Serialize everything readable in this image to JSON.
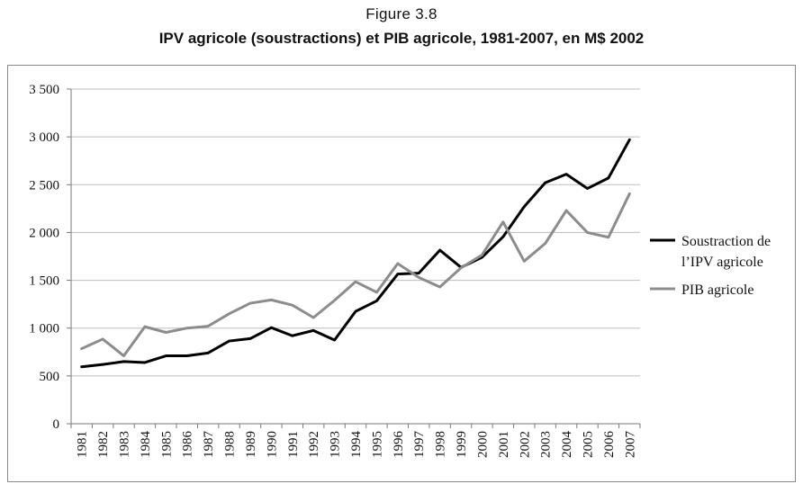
{
  "header": {
    "figure_label": "Figure 3.8",
    "title": "IPV agricole (soustractions) et PIB agricole, 1981-2007, en M$ 2002"
  },
  "chart_data": {
    "type": "line",
    "title": "IPV agricole (soustractions) et PIB agricole, 1981-2007, en M$ 2002",
    "xlabel": "",
    "ylabel": "",
    "ylim": [
      0,
      3500
    ],
    "yticks": [
      0,
      500,
      1000,
      1500,
      2000,
      2500,
      3000,
      3500
    ],
    "ytick_labels": [
      "0",
      "500",
      "1 000",
      "1 500",
      "2 000",
      "2 500",
      "3 000",
      "3 500"
    ],
    "grid": "horizontal",
    "legend_position": "right",
    "categories": [
      "1981",
      "1982",
      "1983",
      "1984",
      "1985",
      "1986",
      "1987",
      "1988",
      "1989",
      "1990",
      "1991",
      "1992",
      "1993",
      "1994",
      "1995",
      "1996",
      "1997",
      "1998",
      "1999",
      "2000",
      "2001",
      "2002",
      "2003",
      "2004",
      "2005",
      "2006",
      "2007"
    ],
    "series": [
      {
        "name": "Soustraction de l’IPV agricole",
        "legend_lines": [
          "Soustraction de",
          "l’IPV agricole"
        ],
        "color": "#000000",
        "values": [
          595,
          620,
          650,
          640,
          710,
          710,
          740,
          865,
          890,
          1005,
          920,
          975,
          875,
          1175,
          1285,
          1565,
          1575,
          1815,
          1635,
          1740,
          1955,
          2270,
          2520,
          2610,
          2460,
          2570,
          2970
        ]
      },
      {
        "name": "PIB agricole",
        "legend_lines": [
          "PIB agricole"
        ],
        "color": "#8c8c8c",
        "values": [
          785,
          885,
          710,
          1015,
          955,
          1000,
          1020,
          1150,
          1260,
          1295,
          1240,
          1110,
          1290,
          1485,
          1375,
          1675,
          1530,
          1430,
          1630,
          1765,
          2110,
          1700,
          1885,
          2230,
          2000,
          1950,
          2405
        ]
      }
    ]
  }
}
